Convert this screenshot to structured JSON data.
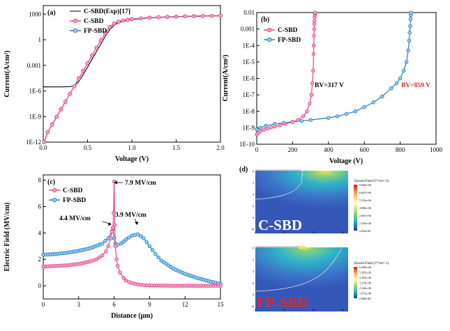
{
  "colors": {
    "c_sbd": "#e8428a",
    "c_sbd_fill": "#f7a8c8",
    "fp_sbd": "#1f7fc4",
    "fp_sbd_fill": "#9fd0f0",
    "exp": "#000000",
    "bv_c": "#000000",
    "bv_fp": "#e4252b"
  },
  "panels": {
    "a": "(a)",
    "b": "(b)",
    "c": "(c)",
    "d": "(d)"
  },
  "axes": {
    "a": {
      "xlabel": "Voltage (V)",
      "ylabel": "Current(A/cm²)",
      "xticks": [
        "0.0",
        "0.5",
        "1.0",
        "1.5",
        "2.0"
      ],
      "yticks": [
        "1E-12",
        "1E-9",
        "1E-6",
        "0.001",
        "1",
        "1000"
      ]
    },
    "b": {
      "xlabel": "Voltage (V)",
      "ylabel": "Current(A/cm²)",
      "xticks": [
        "0",
        "200",
        "400",
        "600",
        "800",
        "1000"
      ],
      "yticks": [
        "1E-10",
        "1E-9",
        "1E-8",
        "1E-7",
        "1E-6",
        "1E-5",
        "1E-4",
        "0.001",
        "0.01"
      ]
    },
    "c": {
      "xlabel": "Distance (μm)",
      "ylabel": "Electric Field (MV/cm)",
      "xticks": [
        "0",
        "3",
        "6",
        "9",
        "12",
        "15"
      ],
      "yticks": [
        "0",
        "2",
        "4",
        "6",
        "8"
      ]
    }
  },
  "legends": {
    "a": [
      "C-SBD(Exp)[17]",
      "C-SBD",
      "FP-SBD"
    ],
    "b": [
      "C-SBD",
      "FP-SBD"
    ],
    "c": [
      "C-SBD",
      "FP-SBD"
    ]
  },
  "annotations": {
    "bv_c": "BV=317 V",
    "bv_fp": "BV=859 V",
    "peak_c": "7.9 MV/cm",
    "edge_c": "4.4 MV/cm",
    "peak_fp": "3.9 MV/cm"
  },
  "simulation": {
    "c_sbd": {
      "label": "C-SBD",
      "title": "ElectricField (V*cm^-1)",
      "scale": [
        "8.000e+06",
        "6.667e+06",
        "5.333e+06",
        "4.000e+06",
        "2.667e+06",
        "1.333e+06",
        "5.054e-06"
      ],
      "yticks": [
        "0",
        "2",
        "4",
        "6",
        "8",
        "10"
      ],
      "xticks": [
        "0",
        "5",
        "10",
        "15"
      ]
    },
    "fp_sbd": {
      "label": "FP-SBD",
      "title": "ElectricField (V*cm^-1)",
      "scale": [
        "6.438e+06",
        "5.365e+06",
        "4.292e+06",
        "3.219e+06",
        "2.146e+06",
        "1.073e+06",
        "2.086e-06"
      ],
      "yticks": [
        "0",
        "2",
        "4",
        "6",
        "8",
        "10"
      ],
      "xticks": [
        "0",
        "5",
        "10",
        "15"
      ]
    }
  },
  "chart_data": [
    {
      "panel": "a",
      "type": "line",
      "xlabel": "Voltage (V)",
      "ylabel": "Current(A/cm²)",
      "xlim": [
        0,
        2
      ],
      "ylim": [
        1e-12,
        10000
      ],
      "yscale": "log",
      "series": [
        {
          "name": "C-SBD(Exp)[17]",
          "style": "line",
          "x": [
            0,
            0.1,
            0.2,
            0.3,
            0.35,
            0.4,
            0.45,
            0.5,
            0.55,
            0.6,
            0.65,
            0.7,
            0.75,
            0.8,
            0.85,
            0.9,
            1.0,
            1.1,
            1.2,
            1.4,
            1.6,
            1.8,
            2.0
          ],
          "y": [
            3e-06,
            3e-06,
            3e-06,
            3.2e-06,
            4e-06,
            1.2e-05,
            8e-05,
            0.0006,
            0.005,
            0.04,
            0.3,
            2.5,
            15,
            50,
            100,
            150,
            230,
            300,
            360,
            450,
            520,
            580,
            640
          ]
        },
        {
          "name": "C-SBD",
          "style": "marker",
          "x": [
            0.01,
            0.05,
            0.1,
            0.15,
            0.2,
            0.25,
            0.3,
            0.35,
            0.4,
            0.45,
            0.5,
            0.55,
            0.6,
            0.65,
            0.7,
            0.75,
            0.8,
            0.85,
            0.9,
            0.95,
            1.0,
            1.1,
            1.2,
            1.3,
            1.4,
            1.5,
            1.6,
            1.7,
            1.8,
            1.9,
            2.0
          ],
          "y": [
            1e-12,
            1.5e-11,
            1.2e-10,
            9e-10,
            7e-09,
            5.5e-08,
            4.5e-07,
            3.5e-06,
            2.8e-05,
            0.00022,
            0.0018,
            0.014,
            0.11,
            0.85,
            6,
            30,
            80,
            130,
            180,
            220,
            260,
            320,
            380,
            430,
            470,
            510,
            550,
            580,
            610,
            630,
            650
          ]
        },
        {
          "name": "FP-SBD",
          "style": "marker",
          "x": [
            0.01,
            0.05,
            0.1,
            0.15,
            0.2,
            0.25,
            0.3,
            0.35,
            0.4,
            0.45,
            0.5,
            0.55,
            0.6,
            0.65,
            0.7,
            0.75,
            0.8,
            0.85,
            0.9,
            0.95,
            1.0,
            1.1,
            1.2,
            1.3,
            1.4,
            1.5,
            1.6,
            1.7,
            1.8,
            1.9,
            2.0
          ],
          "y": [
            1e-12,
            1.5e-11,
            1.2e-10,
            9e-10,
            7e-09,
            5.5e-08,
            4.5e-07,
            3.5e-06,
            2.8e-05,
            0.00022,
            0.0018,
            0.014,
            0.11,
            0.85,
            6,
            30,
            80,
            130,
            180,
            220,
            260,
            320,
            380,
            430,
            470,
            510,
            550,
            580,
            610,
            630,
            650
          ]
        }
      ]
    },
    {
      "panel": "b",
      "type": "line",
      "xlabel": "Voltage (V)",
      "ylabel": "Current(A/cm²)",
      "xlim": [
        0,
        1000
      ],
      "ylim": [
        1e-10,
        0.01
      ],
      "yscale": "log",
      "series": [
        {
          "name": "C-SBD",
          "x": [
            0,
            10,
            20,
            40,
            60,
            80,
            100,
            130,
            160,
            200,
            230,
            260,
            280,
            295,
            305,
            310,
            315,
            317,
            318,
            319,
            320,
            321,
            322,
            323,
            324,
            325,
            325
          ],
          "y": [
            4e-10,
            5e-10,
            6e-10,
            7.5e-10,
            9e-10,
            1.05e-09,
            1.2e-09,
            1.4e-09,
            1.7e-09,
            2.2e-09,
            3e-09,
            5e-09,
            1e-08,
            3e-08,
            1e-07,
            5e-07,
            3e-06,
            3e-05,
            0.0001,
            0.0004,
            0.001,
            0.002,
            0.003,
            0.005,
            0.007,
            0.009,
            0.01
          ]
        },
        {
          "name": "FP-SBD",
          "x": [
            0,
            20,
            50,
            100,
            150,
            200,
            250,
            300,
            400,
            450,
            500,
            550,
            600,
            650,
            700,
            750,
            780,
            800,
            820,
            835,
            845,
            850,
            853,
            856,
            858,
            859,
            860
          ],
          "y": [
            8e-10,
            1e-09,
            1.3e-09,
            1.7e-09,
            2e-09,
            2.3e-09,
            2.6e-09,
            3e-09,
            4e-09,
            5e-09,
            7e-09,
            1e-08,
            1.8e-08,
            3.5e-08,
            8e-08,
            2.5e-07,
            5e-07,
            1e-06,
            3e-06,
            1e-05,
            5e-05,
            0.0002,
            0.0006,
            0.0015,
            0.004,
            0.007,
            0.01
          ]
        }
      ],
      "annotations": [
        {
          "text": "BV=317 V",
          "x": 317
        },
        {
          "text": "BV=859 V",
          "x": 859
        }
      ]
    },
    {
      "panel": "c",
      "type": "line",
      "xlabel": "Distance (μm)",
      "ylabel": "Electric Field (MV/cm)",
      "xlim": [
        0,
        15
      ],
      "ylim": [
        -1,
        8.4
      ],
      "series": [
        {
          "name": "C-SBD",
          "x": [
            0,
            1,
            2,
            3,
            4,
            4.5,
            5,
            5.3,
            5.5,
            5.7,
            5.8,
            5.9,
            5.95,
            6.0,
            6.05,
            6.1,
            6.2,
            6.3,
            6.5,
            6.8,
            7,
            7.5,
            8,
            8.5,
            9,
            10,
            11,
            12,
            13,
            14,
            15
          ],
          "y": [
            1.45,
            1.5,
            1.55,
            1.65,
            1.85,
            2.0,
            2.3,
            2.6,
            3.0,
            3.6,
            4.1,
            4.4,
            5.5,
            7.9,
            4.6,
            3.0,
            2.0,
            1.5,
            1.0,
            0.6,
            0.4,
            0.2,
            0.1,
            0.05,
            0.02,
            0.01,
            0,
            0,
            0,
            0,
            0
          ]
        },
        {
          "name": "FP-SBD",
          "x": [
            0,
            1,
            2,
            3,
            4,
            5,
            5.5,
            5.8,
            5.9,
            6.0,
            6.1,
            6.3,
            6.6,
            7.0,
            7.5,
            8.0,
            8.5,
            9,
            9.5,
            10,
            11,
            12,
            13,
            14,
            15
          ],
          "y": [
            2.35,
            2.4,
            2.5,
            2.65,
            2.85,
            3.2,
            3.6,
            4.1,
            4.3,
            3.6,
            3.2,
            3.1,
            3.2,
            3.5,
            3.8,
            3.9,
            3.6,
            3.0,
            2.4,
            1.9,
            1.3,
            0.9,
            0.6,
            0.35,
            0.15
          ]
        }
      ],
      "annotations": [
        {
          "text": "7.9 MV/cm",
          "x": 6.0,
          "y": 7.9
        },
        {
          "text": "4.4 MV/cm",
          "x": 5.9,
          "y": 4.4
        },
        {
          "text": "3.9 MV/cm",
          "x": 8.0,
          "y": 3.9
        }
      ]
    }
  ]
}
